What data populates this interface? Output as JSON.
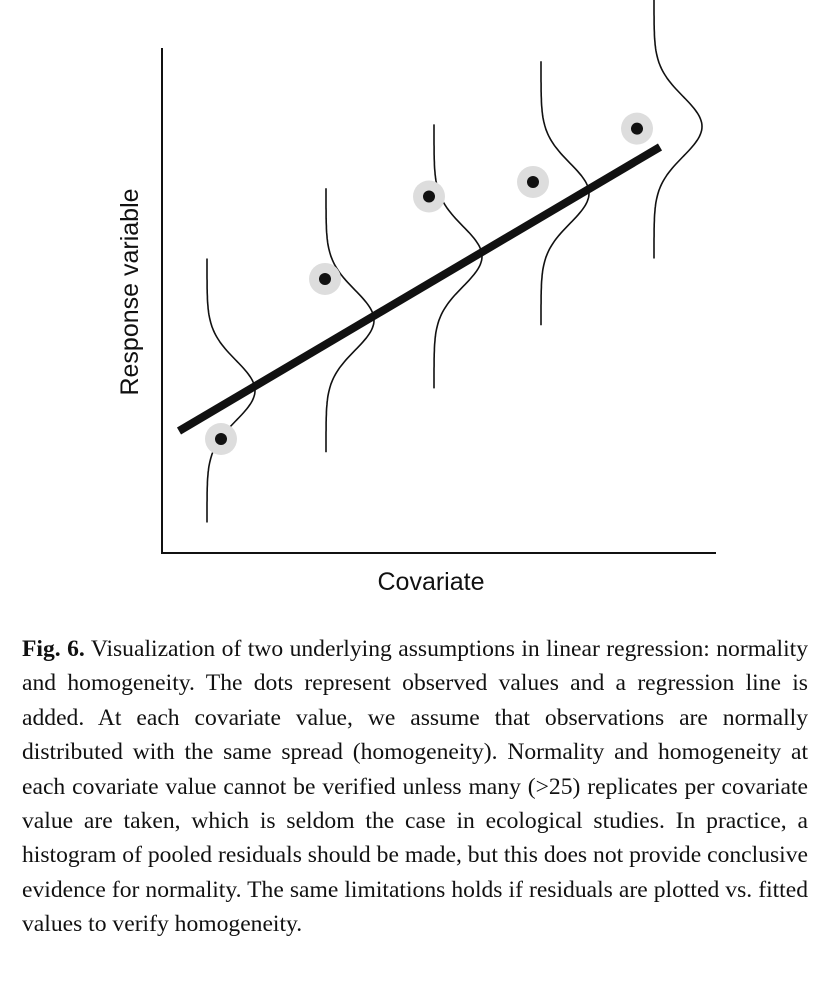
{
  "figure": {
    "x_axis_label": "Covariate",
    "y_axis_label": "Response variable",
    "observations": [
      {
        "x": 1,
        "y": 1
      },
      {
        "x": 2,
        "y": 2.65
      },
      {
        "x": 3,
        "y": 3.5
      },
      {
        "x": 4,
        "y": 3.65
      },
      {
        "x": 5,
        "y": 4.2
      }
    ],
    "regression_line": {
      "intercept": 0,
      "slope": 1
    },
    "colors": {
      "line": "#111111",
      "dot": "#111111",
      "dot_halo": "#dddddd"
    }
  },
  "caption": {
    "label": "Fig. 6.",
    "text": "Visualization of two underlying assumptions in linear regression: normality and homogeneity. The dots represent observed values and a regression line is added. At each covariate value, we assume that observations are normally distributed with the same spread (homogeneity). Normality and homogeneity at each covariate value cannot be verified unless many (>25) replicates per covariate value are taken, which is seldom the case in ecological studies. In practice, a histogram of pooled residuals should be made, but this does not provide conclusive evidence for normality. The same limitations holds if residuals are plotted vs. fitted values to verify homogeneity."
  }
}
